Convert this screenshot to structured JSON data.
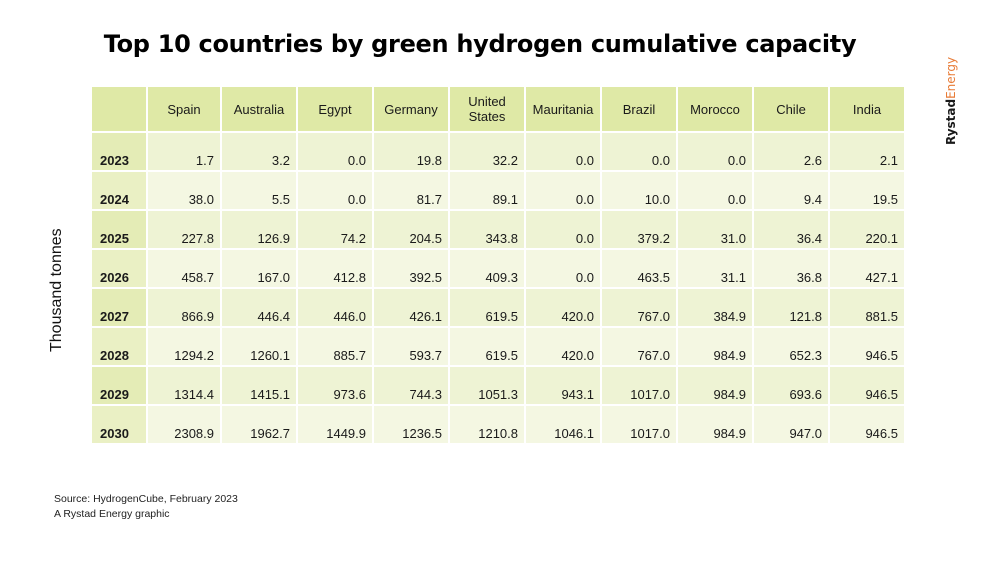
{
  "title": "Top 10 countries by green hydrogen cumulative capacity",
  "brand": {
    "part1": "Rystad",
    "part2": "Energy"
  },
  "chart_data": {
    "type": "table",
    "ylabel": "Thousand tonnes",
    "columns": [
      "Spain",
      "Australia",
      "Egypt",
      "Germany",
      "United States",
      "Mauritania",
      "Brazil",
      "Morocco",
      "Chile",
      "India"
    ],
    "rows": [
      {
        "year": "2023",
        "values": [
          "1.7",
          "3.2",
          "0.0",
          "19.8",
          "32.2",
          "0.0",
          "0.0",
          "0.0",
          "2.6",
          "2.1"
        ]
      },
      {
        "year": "2024",
        "values": [
          "38.0",
          "5.5",
          "0.0",
          "81.7",
          "89.1",
          "0.0",
          "10.0",
          "0.0",
          "9.4",
          "19.5"
        ]
      },
      {
        "year": "2025",
        "values": [
          "227.8",
          "126.9",
          "74.2",
          "204.5",
          "343.8",
          "0.0",
          "379.2",
          "31.0",
          "36.4",
          "220.1"
        ]
      },
      {
        "year": "2026",
        "values": [
          "458.7",
          "167.0",
          "412.8",
          "392.5",
          "409.3",
          "0.0",
          "463.5",
          "31.1",
          "36.8",
          "427.1"
        ]
      },
      {
        "year": "2027",
        "values": [
          "866.9",
          "446.4",
          "446.0",
          "426.1",
          "619.5",
          "420.0",
          "767.0",
          "384.9",
          "121.8",
          "881.5"
        ]
      },
      {
        "year": "2028",
        "values": [
          "1294.2",
          "1260.1",
          "885.7",
          "593.7",
          "619.5",
          "420.0",
          "767.0",
          "984.9",
          "652.3",
          "946.5"
        ]
      },
      {
        "year": "2029",
        "values": [
          "1314.4",
          "1415.1",
          "973.6",
          "744.3",
          "1051.3",
          "943.1",
          "1017.0",
          "984.9",
          "693.6",
          "946.5"
        ]
      },
      {
        "year": "2030",
        "values": [
          "2308.9",
          "1962.7",
          "1449.9",
          "1236.5",
          "1210.8",
          "1046.1",
          "1017.0",
          "984.9",
          "947.0",
          "946.5"
        ]
      }
    ]
  },
  "footer": {
    "source": "Source:  HydrogenCube, February 2023",
    "credit": "A Rystad Energy graphic"
  }
}
